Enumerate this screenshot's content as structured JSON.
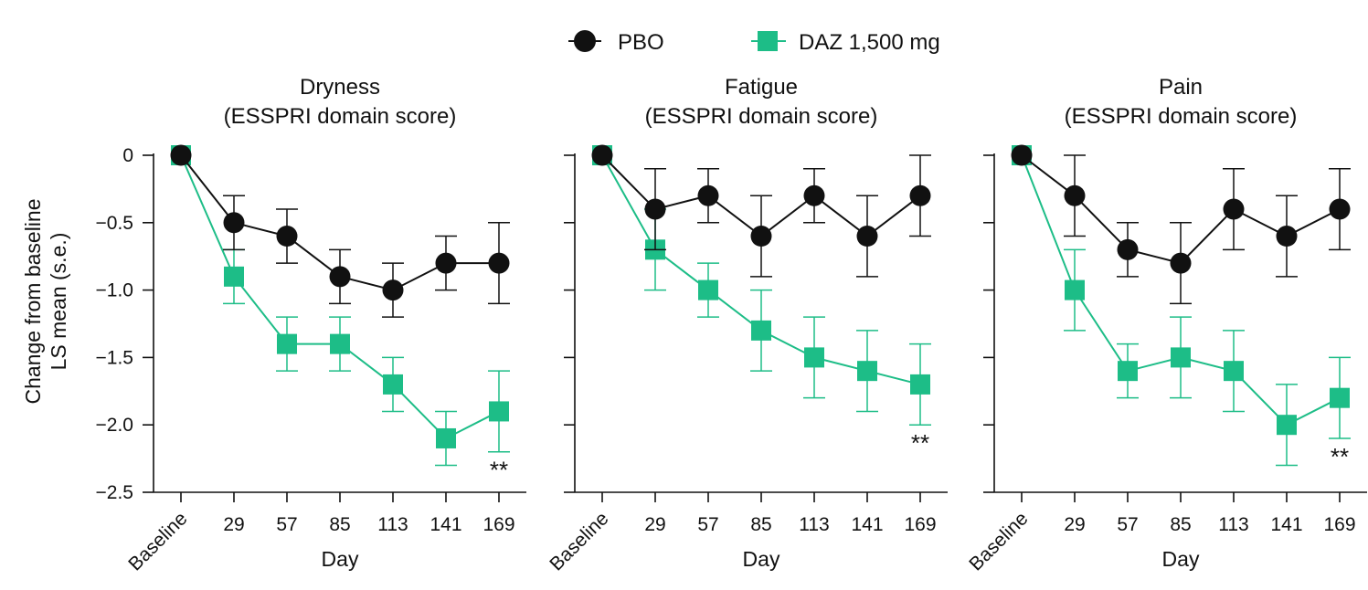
{
  "legend": {
    "pbo_label": "PBO",
    "daz_label": "DAZ 1,500 mg"
  },
  "colors": {
    "pbo": "#111111",
    "daz": "#1dbd87",
    "axis": "#111111"
  },
  "y_axis": {
    "label_line1": "Change from baseline",
    "label_line2": "LS mean (s.e.)"
  },
  "chart_data": [
    {
      "type": "line",
      "title_line1": "Dryness",
      "title_line2": "(ESSPRI domain score)",
      "xlabel": "Day",
      "categories": [
        "Baseline",
        "29",
        "57",
        "85",
        "113",
        "141",
        "169"
      ],
      "ylim": [
        -2.5,
        0
      ],
      "yticks": [
        "0",
        "-0.5",
        "-1.0",
        "-1.5",
        "-2.0",
        "-2.5"
      ],
      "series": [
        {
          "name": "PBO",
          "values": [
            0,
            -0.5,
            -0.6,
            -0.9,
            -1.0,
            -0.8,
            -0.8
          ],
          "errors": [
            0,
            0.2,
            0.2,
            0.2,
            0.2,
            0.2,
            0.3
          ]
        },
        {
          "name": "DAZ 1,500 mg",
          "values": [
            0,
            -0.9,
            -1.4,
            -1.4,
            -1.7,
            -2.1,
            -1.9
          ],
          "errors": [
            0,
            0.2,
            0.2,
            0.2,
            0.2,
            0.2,
            0.3
          ]
        }
      ],
      "annotation": "**"
    },
    {
      "type": "line",
      "title_line1": "Fatigue",
      "title_line2": "(ESSPRI domain score)",
      "xlabel": "Day",
      "categories": [
        "Baseline",
        "29",
        "57",
        "85",
        "113",
        "141",
        "169"
      ],
      "ylim": [
        -2.5,
        0
      ],
      "series": [
        {
          "name": "PBO",
          "values": [
            0,
            -0.4,
            -0.3,
            -0.6,
            -0.3,
            -0.6,
            -0.3
          ],
          "errors": [
            0,
            0.3,
            0.2,
            0.3,
            0.2,
            0.3,
            0.3
          ]
        },
        {
          "name": "DAZ 1,500 mg",
          "values": [
            0,
            -0.7,
            -1.0,
            -1.3,
            -1.5,
            -1.6,
            -1.7
          ],
          "errors": [
            0,
            0.3,
            0.2,
            0.3,
            0.3,
            0.3,
            0.3
          ]
        }
      ],
      "annotation": "**"
    },
    {
      "type": "line",
      "title_line1": "Pain",
      "title_line2": "(ESSPRI domain score)",
      "xlabel": "Day",
      "categories": [
        "Baseline",
        "29",
        "57",
        "85",
        "113",
        "141",
        "169"
      ],
      "ylim": [
        -2.5,
        0
      ],
      "series": [
        {
          "name": "PBO",
          "values": [
            0,
            -0.3,
            -0.7,
            -0.8,
            -0.4,
            -0.6,
            -0.4
          ],
          "errors": [
            0,
            0.3,
            0.2,
            0.3,
            0.3,
            0.3,
            0.3
          ]
        },
        {
          "name": "DAZ 1,500 mg",
          "values": [
            0,
            -1.0,
            -1.6,
            -1.5,
            -1.6,
            -2.0,
            -1.8
          ],
          "errors": [
            0,
            0.3,
            0.2,
            0.3,
            0.3,
            0.3,
            0.3
          ]
        }
      ],
      "annotation": "**"
    }
  ]
}
